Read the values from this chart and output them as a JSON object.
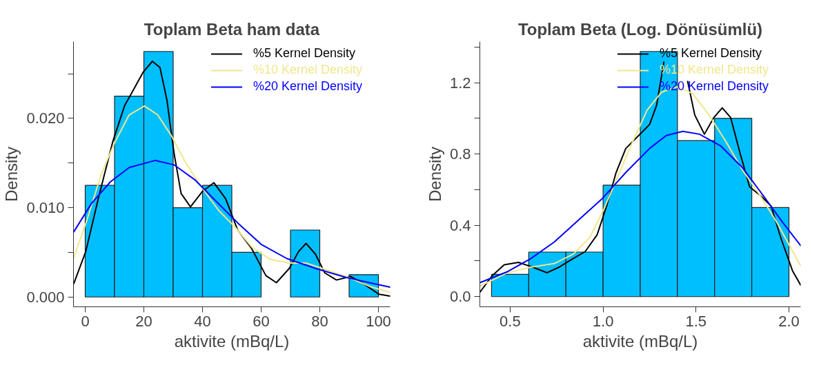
{
  "chart_data": [
    {
      "type": "histogram",
      "title": "Toplam Beta ham data",
      "xlabel": "aktivite (mBq/L)",
      "ylabel": "Density",
      "bins": [
        0,
        10,
        20,
        30,
        40,
        50,
        60,
        70,
        80,
        90,
        100
      ],
      "values": [
        0.0125,
        0.0225,
        0.0275,
        0.01,
        0.0125,
        0.005,
        0,
        0.0075,
        0,
        0.0025
      ],
      "color": "#00bfff",
      "xlim": [
        -4,
        104
      ],
      "ylim": [
        -0.0011,
        0.0286
      ],
      "xticks": [
        0,
        20,
        40,
        60,
        80,
        100
      ],
      "yticks": [
        {
          "value": 0,
          "label": "0.000"
        },
        {
          "value": 0.005,
          "label": null
        },
        {
          "value": 0.01,
          "label": "0.010"
        },
        {
          "value": 0.015,
          "label": null
        },
        {
          "value": 0.02,
          "label": "0.020"
        },
        {
          "value": 0.025,
          "label": null
        }
      ],
      "legend": "top right",
      "series": [
        {
          "type": "line",
          "name": "%5 Kernel Density",
          "color": "#000000",
          "x": [
            -3.9,
            0.2,
            4.6,
            9.4,
            13.4,
            16.6,
            19.8,
            22.9,
            25.5,
            27.9,
            30.3,
            32.7,
            35.9,
            39.9,
            43.9,
            47.9,
            52.0,
            56.8,
            61.6,
            65.2,
            69.6,
            72.8,
            75.3,
            78.5,
            81.7,
            85.7,
            90.5,
            95.3,
            100.2,
            104
          ],
          "values": [
            0.0015,
            0.0051,
            0.0112,
            0.0174,
            0.0214,
            0.0233,
            0.0252,
            0.0264,
            0.0257,
            0.022,
            0.0161,
            0.0116,
            0.0101,
            0.0118,
            0.0128,
            0.011,
            0.0075,
            0.0054,
            0.0024,
            0.0016,
            0.0032,
            0.0051,
            0.006,
            0.0048,
            0.0027,
            0.0019,
            0.0023,
            0.0014,
            0.0003,
            0.0001
          ]
        },
        {
          "type": "line",
          "name": "%10 Kernel Density",
          "color": "#f0e68c",
          "x": [
            -3.9,
            0.6,
            5.4,
            10.2,
            15.0,
            20.2,
            24.7,
            29.5,
            34.3,
            39.9,
            45.5,
            51.2,
            56.8,
            63.2,
            69.6,
            75.3,
            80.9,
            88.9,
            96.9,
            104
          ],
          "values": [
            0.0044,
            0.0086,
            0.0137,
            0.0174,
            0.0204,
            0.0214,
            0.0204,
            0.018,
            0.015,
            0.0122,
            0.0097,
            0.0078,
            0.0056,
            0.0042,
            0.0038,
            0.0038,
            0.0032,
            0.0023,
            0.0012,
            0.0005
          ]
        },
        {
          "type": "line",
          "name": "%20 Kernel Density",
          "color": "#0000ff",
          "x": [
            -3.9,
            2.2,
            8.6,
            15.0,
            23.9,
            30.3,
            37.5,
            44.7,
            52.0,
            60.0,
            68.8,
            78.5,
            88.9,
            96.9,
            104
          ],
          "values": [
            0.0073,
            0.0105,
            0.0129,
            0.0145,
            0.0153,
            0.0148,
            0.0131,
            0.0107,
            0.0083,
            0.0059,
            0.0043,
            0.0032,
            0.0022,
            0.0016,
            0.0011
          ]
        }
      ]
    },
    {
      "type": "histogram",
      "title": "Toplam Beta (Log. Dönüsümlü)",
      "xlabel": "aktivite (mBq/L)",
      "ylabel": "Density",
      "bins": [
        0.4,
        0.6,
        0.8,
        1.0,
        1.2,
        1.4,
        1.6,
        1.8,
        2.0
      ],
      "values": [
        0.125,
        0.25,
        0.25,
        0.625,
        1.375,
        0.875,
        1.0,
        0.5
      ],
      "color": "#00bfff",
      "xlim": [
        0.337,
        2.063
      ],
      "ylim": [
        -0.057,
        1.43
      ],
      "xticks": [
        {
          "value": 0.5,
          "label": "0.5"
        },
        {
          "value": 1.0,
          "label": "1.0"
        },
        {
          "value": 1.5,
          "label": "1.5"
        },
        {
          "value": 2.0,
          "label": "2.0"
        }
      ],
      "yticks": [
        {
          "value": 0,
          "label": "0.0"
        },
        {
          "value": 0.2,
          "label": null
        },
        {
          "value": 0.4,
          "label": "0.4"
        },
        {
          "value": 0.6,
          "label": null
        },
        {
          "value": 0.8,
          "label": "0.8"
        },
        {
          "value": 1.0,
          "label": null
        },
        {
          "value": 1.2,
          "label": "1.2"
        },
        {
          "value": 1.4,
          "label": null
        }
      ],
      "legend": "top right",
      "series": [
        {
          "type": "line",
          "name": "%5 Kernel Density",
          "color": "#000000",
          "x": [
            0.337,
            0.404,
            0.468,
            0.545,
            0.622,
            0.698,
            0.763,
            0.827,
            0.904,
            0.968,
            1.019,
            1.07,
            1.122,
            1.186,
            1.25,
            1.288,
            1.327,
            1.35,
            1.39,
            1.423,
            1.455,
            1.493,
            1.545,
            1.596,
            1.641,
            1.686,
            1.737,
            1.788,
            1.852,
            1.904,
            1.955,
            2.019,
            2.063
          ],
          "values": [
            0.024,
            0.118,
            0.179,
            0.192,
            0.165,
            0.134,
            0.165,
            0.206,
            0.253,
            0.347,
            0.508,
            0.696,
            0.831,
            0.898,
            0.965,
            1.073,
            1.315,
            null,
            null,
            null,
            1.207,
            1.019,
            0.911,
            1.005,
            1.059,
            1.005,
            0.804,
            0.616,
            0.562,
            0.508,
            0.333,
            0.145,
            0.065
          ]
        },
        {
          "type": "line",
          "name": "%10 Kernel Density",
          "color": "#f0e68c",
          "x": [
            0.337,
            0.481,
            0.609,
            0.737,
            0.84,
            0.929,
            1.006,
            1.083,
            1.16,
            1.237,
            1.314,
            1.397,
            1.481,
            1.57,
            1.66,
            1.75,
            1.84,
            1.929,
            2.063
          ],
          "values": [
            0.058,
            0.132,
            0.165,
            0.185,
            0.239,
            0.333,
            0.495,
            0.683,
            0.871,
            1.046,
            1.146,
            1.177,
            1.14,
            1.019,
            0.871,
            0.71,
            0.575,
            0.427,
            0.172
          ]
        },
        {
          "type": "line",
          "name": "%20 Kernel Density",
          "color": "#0000ff",
          "x": [
            0.337,
            0.481,
            0.609,
            0.737,
            0.865,
            0.994,
            1.122,
            1.25,
            1.34,
            1.429,
            1.519,
            1.634,
            1.75,
            1.865,
            1.968,
            2.063
          ],
          "values": [
            0.078,
            0.138,
            0.212,
            0.306,
            0.427,
            0.548,
            0.696,
            0.831,
            0.904,
            0.927,
            0.911,
            0.844,
            0.723,
            0.562,
            0.414,
            0.286
          ]
        }
      ]
    }
  ]
}
